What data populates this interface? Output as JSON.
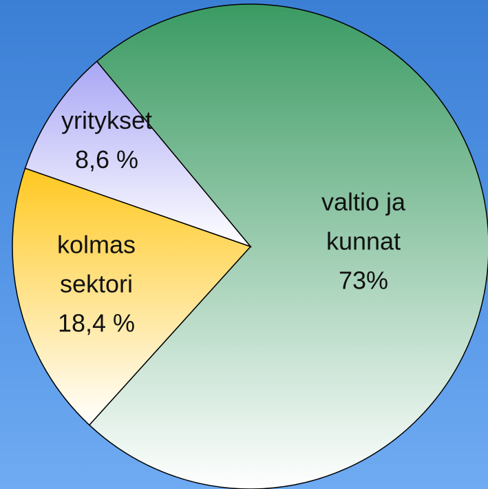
{
  "chart_data": {
    "type": "pie",
    "categories": [
      "valtio ja kunnat",
      "kolmas sektori",
      "yritykset"
    ],
    "values": [
      73,
      18.4,
      8.6
    ],
    "value_labels": [
      "73%",
      "18,4 %",
      "8,6 %"
    ],
    "colors": [
      "#3a9a62",
      "#ffc820",
      "#a9a6f5"
    ]
  }
}
